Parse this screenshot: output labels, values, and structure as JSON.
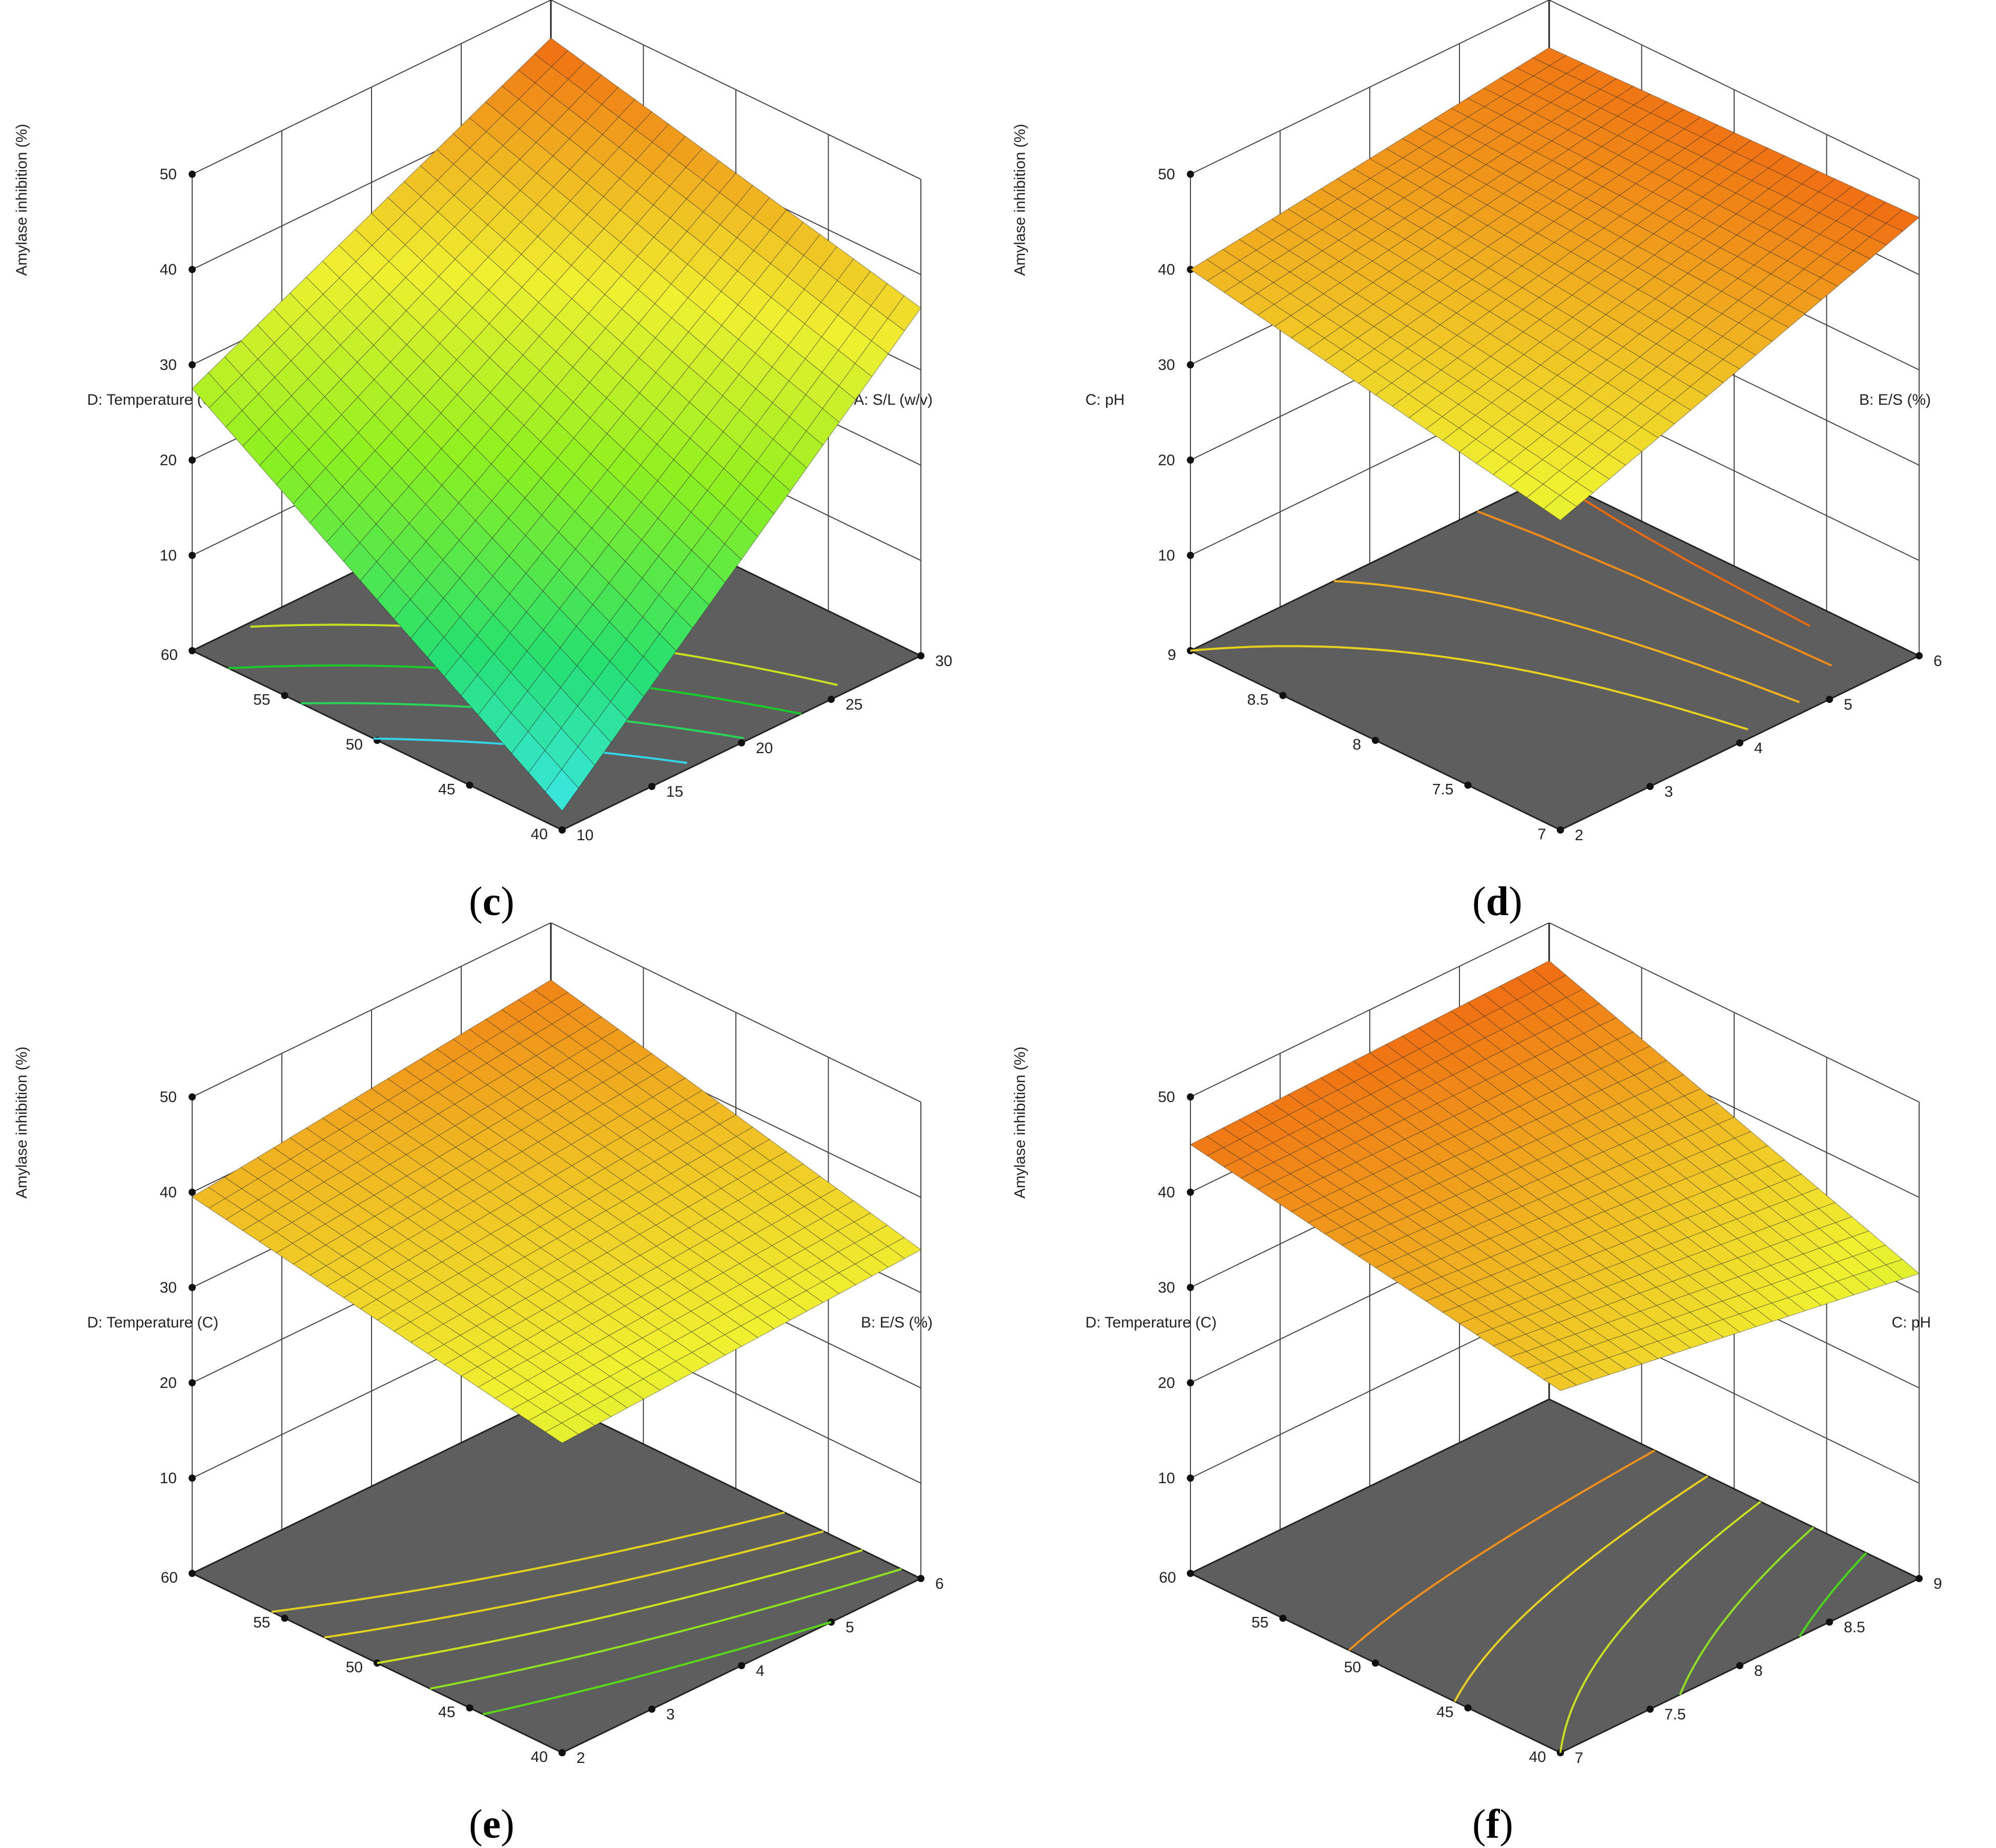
{
  "chart_data": [
    {
      "type": "surface3d",
      "caption_letter": "c",
      "zlabel": "Amylase inhibition (%)",
      "xlabel": "D: Temperature (C)",
      "ylabel": "A: S/L (w/v)",
      "x_ticks": [
        "60",
        "55",
        "50",
        "45",
        "40"
      ],
      "y_ticks": [
        "10",
        "15",
        "20",
        "25",
        "30"
      ],
      "z_ticks": [
        "10",
        "20",
        "30",
        "40",
        "50"
      ],
      "xlim": [
        40,
        60
      ],
      "ylim": [
        10,
        30
      ],
      "zlim": [
        0,
        50
      ],
      "corners": {
        "x40_y10": 2.0,
        "x60_y10": 27.5,
        "x40_y30": 36.5,
        "x60_y30": 46.0
      },
      "contour_levels": [
        15,
        20,
        25,
        30
      ],
      "contour_colors": [
        "#33d6e6",
        "#2ad65a",
        "#18cc2a",
        "#c8e020"
      ]
    },
    {
      "type": "surface3d",
      "caption_letter": "d",
      "zlabel": "Amylase inhibition (%)",
      "xlabel": "C: pH",
      "ylabel": "B: E/S (%)",
      "x_ticks": [
        "9",
        "8.5",
        "8",
        "7.5",
        "7"
      ],
      "y_ticks": [
        "2",
        "3",
        "4",
        "5",
        "6"
      ],
      "z_ticks": [
        "10",
        "20",
        "30",
        "40",
        "50"
      ],
      "xlim": [
        7,
        9
      ],
      "ylim": [
        2,
        6
      ],
      "zlim": [
        0,
        50
      ],
      "corners": {
        "x7_y2": 32.5,
        "x9_y2": 40.0,
        "x7_y6": 46.0,
        "x9_y6": 45.0
      },
      "contour_levels": [
        40,
        42,
        44,
        45
      ],
      "contour_colors": [
        "#e8d020",
        "#f0b020",
        "#f08a18",
        "#ea6a10"
      ]
    },
    {
      "type": "surface3d",
      "caption_letter": "e",
      "zlabel": "Amylase inhibition (%)",
      "xlabel": "D: Temperature (C)",
      "ylabel": "B: E/S (%)",
      "x_ticks": [
        "60",
        "55",
        "50",
        "45",
        "40"
      ],
      "y_ticks": [
        "2",
        "3",
        "4",
        "5",
        "6"
      ],
      "z_ticks": [
        "10",
        "20",
        "30",
        "40",
        "50"
      ],
      "xlim": [
        40,
        60
      ],
      "ylim": [
        2,
        6
      ],
      "zlim": [
        0,
        50
      ],
      "corners": {
        "x40_y2": 32.5,
        "x60_y2": 39.5,
        "x40_y6": 34.5,
        "x60_y6": 44.0
      },
      "contour_levels": [
        38,
        37,
        36,
        35,
        34
      ],
      "contour_colors": [
        "#e0d020",
        "#e0d020",
        "#c8e020",
        "#8ee020",
        "#5ad818"
      ]
    },
    {
      "type": "surface3d",
      "caption_letter": "f",
      "zlabel": "Amylase inhibition (%)",
      "xlabel": "D: Temperature (C)",
      "ylabel": "C: pH",
      "x_ticks": [
        "60",
        "55",
        "50",
        "45",
        "40"
      ],
      "y_ticks": [
        "7",
        "7.5",
        "8",
        "8.5",
        "9"
      ],
      "z_ticks": [
        "10",
        "20",
        "30",
        "40",
        "50"
      ],
      "xlim": [
        40,
        60
      ],
      "ylim": [
        7,
        9
      ],
      "zlim": [
        0,
        50
      ],
      "corners": {
        "x40_y7": 38.0,
        "x60_y7": 45.0,
        "x40_y9": 32.0,
        "x60_y9": 46.0
      },
      "contour_levels": [
        42,
        40,
        38,
        36,
        34
      ],
      "contour_colors": [
        "#f0901a",
        "#e8d020",
        "#c8e020",
        "#8ee020",
        "#4ad818"
      ]
    }
  ]
}
